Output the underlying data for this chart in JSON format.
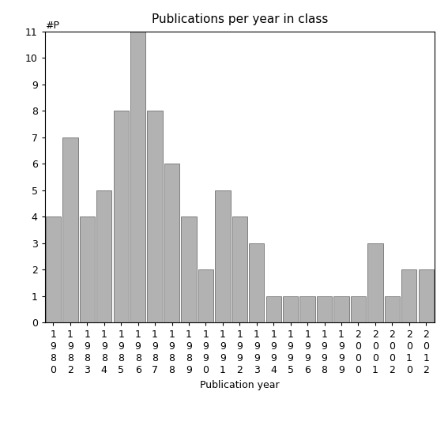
{
  "title": "Publications per year in class",
  "xlabel": "Publication year",
  "ylabel": "#P",
  "categories": [
    "1980",
    "1982",
    "1983",
    "1984",
    "1985",
    "1986",
    "1987",
    "1988",
    "1989",
    "1990",
    "1991",
    "1992",
    "1993",
    "1994",
    "1995",
    "1996",
    "1998",
    "1999",
    "2000",
    "2001",
    "2002",
    "2010",
    "2012"
  ],
  "values": [
    4,
    7,
    4,
    5,
    8,
    11,
    8,
    6,
    4,
    2,
    5,
    4,
    3,
    1,
    1,
    1,
    1,
    1,
    1,
    3,
    1,
    2,
    2
  ],
  "bar_color": "#b2b2b2",
  "bar_edgecolor": "#707070",
  "ylim": [
    0,
    11
  ],
  "yticks": [
    0,
    1,
    2,
    3,
    4,
    5,
    6,
    7,
    8,
    9,
    10,
    11
  ],
  "title_fontsize": 11,
  "axis_label_fontsize": 9,
  "tick_fontsize": 9,
  "ylabel_fontsize": 9
}
